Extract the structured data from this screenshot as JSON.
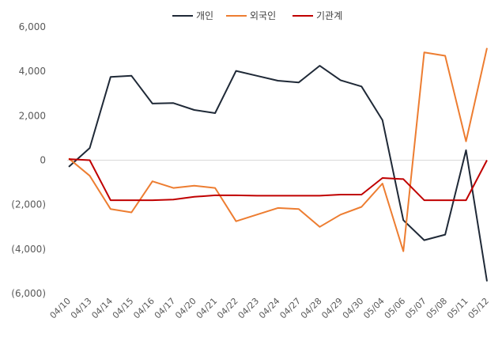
{
  "chart_data": {
    "type": "line",
    "categories": [
      "04/10",
      "04/13",
      "04/14",
      "04/15",
      "04/16",
      "04/17",
      "04/20",
      "04/21",
      "04/22",
      "04/23",
      "04/24",
      "04/27",
      "04/28",
      "04/29",
      "04/30",
      "05/04",
      "05/06",
      "05/07",
      "05/08",
      "05/11",
      "05/12"
    ],
    "series": [
      {
        "name": "개인",
        "color": "#1f2937",
        "values": [
          -300,
          550,
          3750,
          3800,
          2550,
          2570,
          2260,
          2120,
          4020,
          3800,
          3580,
          3500,
          4250,
          3600,
          3320,
          1800,
          -2700,
          -3600,
          -3350,
          450,
          -5450
        ]
      },
      {
        "name": "외국인",
        "color": "#ed7d31",
        "values": [
          80,
          -700,
          -2200,
          -2350,
          -950,
          -1250,
          -1150,
          -1250,
          -2750,
          -2450,
          -2150,
          -2200,
          -3000,
          -2450,
          -2100,
          -1050,
          -4100,
          4850,
          4700,
          850,
          5050
        ]
      },
      {
        "name": "기관계",
        "color": "#c00000",
        "values": [
          50,
          0,
          -1800,
          -1800,
          -1800,
          -1770,
          -1650,
          -1580,
          -1580,
          -1600,
          -1600,
          -1600,
          -1600,
          -1550,
          -1550,
          -800,
          -850,
          -1800,
          -1800,
          -1800,
          0
        ]
      }
    ],
    "y_ticks": [
      "6,000",
      "4,000",
      "2,000",
      "0",
      "(2,000)",
      "(4,000)",
      "(6,000)"
    ],
    "ylim": [
      -6000,
      6000
    ],
    "grid": false,
    "legend_position": "top-center"
  }
}
